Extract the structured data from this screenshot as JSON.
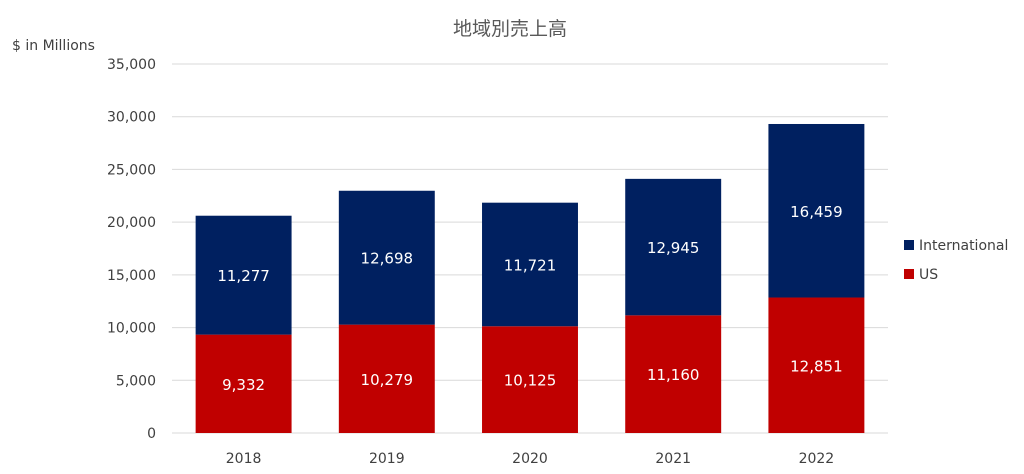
{
  "chart_data": {
    "type": "bar",
    "stacked": true,
    "title": "地域別売上高",
    "ylabel": "$ in Millions",
    "xlabel": "",
    "categories": [
      "2018",
      "2019",
      "2020",
      "2021",
      "2022"
    ],
    "ylim": [
      0,
      35000
    ],
    "yticks": [
      0,
      5000,
      10000,
      15000,
      20000,
      25000,
      30000,
      35000
    ],
    "ytick_labels": [
      "0",
      "5,000",
      "10,000",
      "15,000",
      "20,000",
      "25,000",
      "30,000",
      "35,000"
    ],
    "grid": true,
    "legend_position": "right",
    "series": [
      {
        "name": "US",
        "color": "#C00000",
        "values": [
          9332,
          10279,
          10125,
          11160,
          12851
        ],
        "labels": [
          "9,332",
          "10,279",
          "10,125",
          "11,160",
          "12,851"
        ]
      },
      {
        "name": "International",
        "color": "#002060",
        "values": [
          11277,
          12698,
          11721,
          12945,
          16459
        ],
        "labels": [
          "11,277",
          "12,698",
          "11,721",
          "12,945",
          "16,459"
        ]
      }
    ],
    "legend_order": [
      "International",
      "US"
    ]
  }
}
